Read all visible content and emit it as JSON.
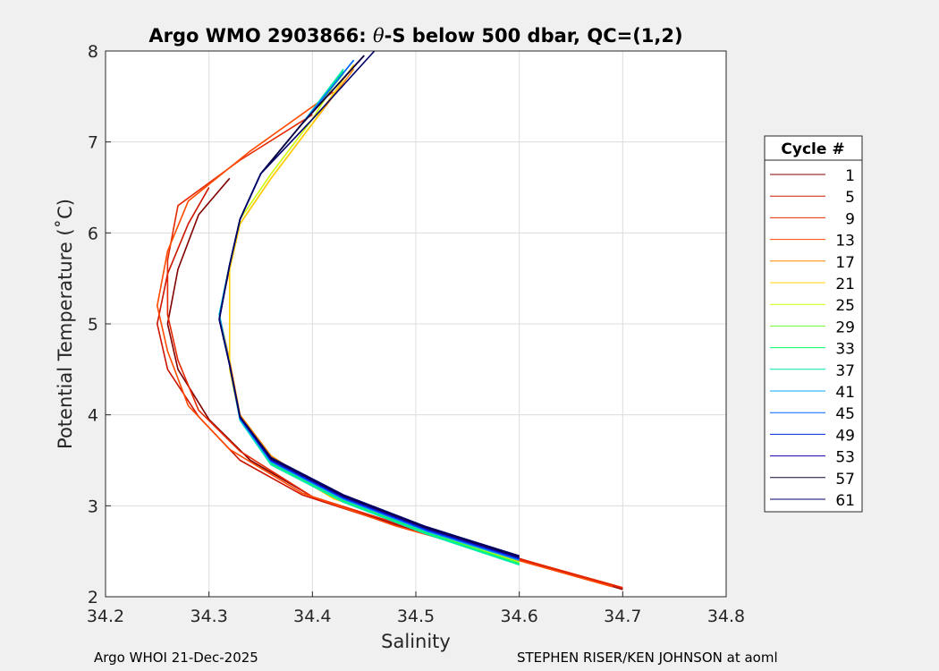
{
  "chart_data": {
    "type": "line",
    "title": "Argo WMO 2903866: θ-S below 500 dbar,  QC=(1,2)",
    "title_parts": {
      "pre": "Argo WMO 2903866: ",
      "theta": "θ",
      "post": "-S below 500 dbar,  QC=(1,2)"
    },
    "xlabel": "Salinity",
    "ylabel": "Potential Temperature (˚C)",
    "xlim": [
      34.2,
      34.8
    ],
    "ylim": [
      2,
      8
    ],
    "xticks": [
      "34.2",
      "34.3",
      "34.4",
      "34.5",
      "34.6",
      "34.7",
      "34.8"
    ],
    "yticks": [
      "2",
      "3",
      "4",
      "5",
      "6",
      "7",
      "8"
    ],
    "grid": true,
    "legend_title": "Cycle #",
    "legend_position": "right",
    "series": [
      {
        "name": "1",
        "color": "#800000",
        "points": [
          [
            34.7,
            2.08
          ],
          [
            34.6,
            2.42
          ],
          [
            34.5,
            2.72
          ],
          [
            34.4,
            3.1
          ],
          [
            34.34,
            3.5
          ],
          [
            34.3,
            3.95
          ],
          [
            34.27,
            4.5
          ],
          [
            34.26,
            5.0
          ],
          [
            34.27,
            5.6
          ],
          [
            34.29,
            6.2
          ],
          [
            34.32,
            6.6
          ]
        ]
      },
      {
        "name": "5",
        "color": "#cc1400",
        "points": [
          [
            34.7,
            2.09
          ],
          [
            34.59,
            2.44
          ],
          [
            34.49,
            2.75
          ],
          [
            34.39,
            3.12
          ],
          [
            34.33,
            3.5
          ],
          [
            34.29,
            3.98
          ],
          [
            34.26,
            4.5
          ],
          [
            34.25,
            5.0
          ],
          [
            34.26,
            5.55
          ],
          [
            34.28,
            6.1
          ],
          [
            34.3,
            6.5
          ]
        ]
      },
      {
        "name": "9",
        "color": "#e62800",
        "points": [
          [
            34.7,
            2.1
          ],
          [
            34.59,
            2.45
          ],
          [
            34.5,
            2.74
          ],
          [
            34.4,
            3.1
          ],
          [
            34.33,
            3.6
          ],
          [
            34.29,
            4.05
          ],
          [
            34.27,
            4.6
          ],
          [
            34.26,
            5.1
          ],
          [
            34.26,
            5.7
          ],
          [
            34.27,
            6.3
          ],
          [
            34.33,
            6.8
          ],
          [
            34.4,
            7.3
          ]
        ]
      },
      {
        "name": "13",
        "color": "#ff4a00",
        "points": [
          [
            34.69,
            2.11
          ],
          [
            34.58,
            2.46
          ],
          [
            34.48,
            2.78
          ],
          [
            34.39,
            3.14
          ],
          [
            34.32,
            3.62
          ],
          [
            34.28,
            4.1
          ],
          [
            34.26,
            4.7
          ],
          [
            34.25,
            5.2
          ],
          [
            34.26,
            5.8
          ],
          [
            34.28,
            6.35
          ],
          [
            34.34,
            6.9
          ],
          [
            34.42,
            7.55
          ]
        ]
      },
      {
        "name": "17",
        "color": "#ff8800",
        "points": [
          [
            34.6,
            2.42
          ],
          [
            34.5,
            2.76
          ],
          [
            34.42,
            3.1
          ],
          [
            34.36,
            3.55
          ],
          [
            34.33,
            4.0
          ],
          [
            34.32,
            4.6
          ],
          [
            34.31,
            5.1
          ],
          [
            34.32,
            5.6
          ],
          [
            34.33,
            6.1
          ],
          [
            34.36,
            6.6
          ],
          [
            34.4,
            7.2
          ],
          [
            34.44,
            7.8
          ]
        ]
      },
      {
        "name": "21",
        "color": "#ffd000",
        "points": [
          [
            34.6,
            2.4
          ],
          [
            34.51,
            2.74
          ],
          [
            34.42,
            3.08
          ],
          [
            34.36,
            3.5
          ],
          [
            34.33,
            3.95
          ],
          [
            34.32,
            4.5
          ],
          [
            34.32,
            5.0
          ],
          [
            34.32,
            5.6
          ],
          [
            34.33,
            6.1
          ],
          [
            34.36,
            6.6
          ],
          [
            34.4,
            7.2
          ],
          [
            34.44,
            7.85
          ]
        ]
      },
      {
        "name": "25",
        "color": "#ccff00",
        "points": [
          [
            34.6,
            2.38
          ],
          [
            34.51,
            2.72
          ],
          [
            34.43,
            3.07
          ],
          [
            34.36,
            3.48
          ],
          [
            34.33,
            3.95
          ],
          [
            34.32,
            4.55
          ],
          [
            34.31,
            5.1
          ],
          [
            34.32,
            5.65
          ],
          [
            34.33,
            6.15
          ],
          [
            34.36,
            6.65
          ],
          [
            34.4,
            7.25
          ],
          [
            34.43,
            7.8
          ]
        ]
      },
      {
        "name": "29",
        "color": "#66ff33",
        "points": [
          [
            34.6,
            2.37
          ],
          [
            34.51,
            2.71
          ],
          [
            34.43,
            3.06
          ],
          [
            34.36,
            3.47
          ],
          [
            34.33,
            3.96
          ],
          [
            34.32,
            4.55
          ],
          [
            34.31,
            5.1
          ],
          [
            34.32,
            5.65
          ],
          [
            34.33,
            6.15
          ],
          [
            34.35,
            6.65
          ],
          [
            34.39,
            7.2
          ],
          [
            34.43,
            7.75
          ]
        ]
      },
      {
        "name": "33",
        "color": "#00ff66",
        "points": [
          [
            34.6,
            2.36
          ],
          [
            34.51,
            2.7
          ],
          [
            34.43,
            3.05
          ],
          [
            34.36,
            3.46
          ],
          [
            34.33,
            3.95
          ],
          [
            34.32,
            4.55
          ],
          [
            34.31,
            5.1
          ],
          [
            34.32,
            5.65
          ],
          [
            34.33,
            6.15
          ],
          [
            34.35,
            6.65
          ],
          [
            34.39,
            7.2
          ],
          [
            34.43,
            7.78
          ]
        ]
      },
      {
        "name": "37",
        "color": "#00e6b0",
        "points": [
          [
            34.6,
            2.35
          ],
          [
            34.51,
            2.69
          ],
          [
            34.43,
            3.04
          ],
          [
            34.36,
            3.45
          ],
          [
            34.33,
            3.94
          ],
          [
            34.32,
            4.55
          ],
          [
            34.31,
            5.1
          ],
          [
            34.32,
            5.65
          ],
          [
            34.33,
            6.15
          ],
          [
            34.35,
            6.65
          ],
          [
            34.39,
            7.2
          ],
          [
            34.43,
            7.8
          ]
        ]
      },
      {
        "name": "41",
        "color": "#00aaff",
        "points": [
          [
            34.6,
            2.4
          ],
          [
            34.51,
            2.72
          ],
          [
            34.43,
            3.07
          ],
          [
            34.36,
            3.48
          ],
          [
            34.33,
            3.95
          ],
          [
            34.32,
            4.55
          ],
          [
            34.31,
            5.1
          ],
          [
            34.32,
            5.65
          ],
          [
            34.33,
            6.15
          ],
          [
            34.35,
            6.65
          ],
          [
            34.39,
            7.2
          ],
          [
            34.44,
            7.9
          ]
        ]
      },
      {
        "name": "45",
        "color": "#0066ff",
        "points": [
          [
            34.6,
            2.41
          ],
          [
            34.51,
            2.73
          ],
          [
            34.43,
            3.08
          ],
          [
            34.36,
            3.49
          ],
          [
            34.33,
            3.96
          ],
          [
            34.32,
            4.55
          ],
          [
            34.31,
            5.05
          ],
          [
            34.32,
            5.65
          ],
          [
            34.33,
            6.15
          ],
          [
            34.35,
            6.65
          ],
          [
            34.39,
            7.2
          ],
          [
            34.44,
            7.9
          ]
        ]
      },
      {
        "name": "49",
        "color": "#0022dd",
        "points": [
          [
            34.6,
            2.42
          ],
          [
            34.51,
            2.74
          ],
          [
            34.43,
            3.09
          ],
          [
            34.36,
            3.5
          ],
          [
            34.33,
            3.97
          ],
          [
            34.32,
            4.55
          ],
          [
            34.31,
            5.05
          ],
          [
            34.32,
            5.65
          ],
          [
            34.33,
            6.15
          ],
          [
            34.35,
            6.65
          ],
          [
            34.39,
            7.2
          ],
          [
            34.45,
            7.95
          ]
        ]
      },
      {
        "name": "53",
        "color": "#1a00aa",
        "points": [
          [
            34.6,
            2.43
          ],
          [
            34.51,
            2.75
          ],
          [
            34.43,
            3.1
          ],
          [
            34.36,
            3.51
          ],
          [
            34.33,
            3.97
          ],
          [
            34.32,
            4.55
          ],
          [
            34.31,
            5.05
          ],
          [
            34.32,
            5.65
          ],
          [
            34.33,
            6.15
          ],
          [
            34.35,
            6.65
          ],
          [
            34.39,
            7.2
          ],
          [
            34.45,
            7.95
          ]
        ]
      },
      {
        "name": "57",
        "color": "#140033",
        "points": [
          [
            34.6,
            2.44
          ],
          [
            34.51,
            2.76
          ],
          [
            34.43,
            3.11
          ],
          [
            34.36,
            3.52
          ],
          [
            34.33,
            3.98
          ],
          [
            34.32,
            4.55
          ],
          [
            34.31,
            5.05
          ],
          [
            34.32,
            5.65
          ],
          [
            34.33,
            6.15
          ],
          [
            34.35,
            6.65
          ],
          [
            34.39,
            7.2
          ],
          [
            34.45,
            7.95
          ]
        ]
      },
      {
        "name": "61",
        "color": "#000066",
        "points": [
          [
            34.6,
            2.45
          ],
          [
            34.51,
            2.77
          ],
          [
            34.43,
            3.12
          ],
          [
            34.36,
            3.53
          ],
          [
            34.33,
            3.98
          ],
          [
            34.32,
            4.55
          ],
          [
            34.31,
            5.05
          ],
          [
            34.32,
            5.65
          ],
          [
            34.33,
            6.15
          ],
          [
            34.35,
            6.65
          ],
          [
            34.4,
            7.25
          ],
          [
            34.46,
            8.0
          ]
        ]
      }
    ]
  },
  "footer": {
    "left": "Argo WHOI 21-Dec-2025",
    "right": "STEPHEN RISER/KEN JOHNSON at aoml"
  }
}
